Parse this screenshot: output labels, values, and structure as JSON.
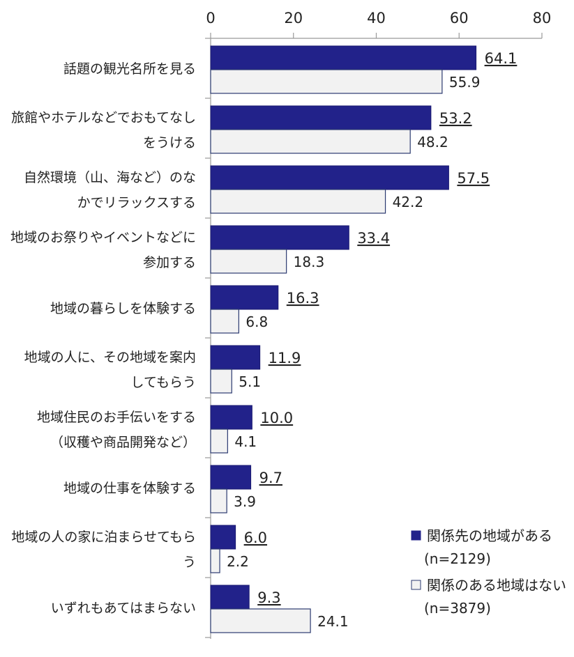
{
  "chart_data": {
    "type": "bar",
    "orientation": "horizontal",
    "x_ticks": [
      "0",
      "20",
      "40",
      "60",
      "80"
    ],
    "xlim": [
      0,
      80
    ],
    "grid": false,
    "legend_position": "bottom-right",
    "categories": [
      {
        "line1": "話題の観光名所を見る",
        "line2": ""
      },
      {
        "line1": "旅館やホテルなどでおもてなし",
        "line2": "をうける"
      },
      {
        "line1": "自然環境（山、海など）のな",
        "line2": "かでリラックスする"
      },
      {
        "line1": "地域のお祭りやイベントなどに",
        "line2": "参加する"
      },
      {
        "line1": "地域の暮らしを体験する",
        "line2": ""
      },
      {
        "line1": "地域の人に、その地域を案内",
        "line2": "してもらう"
      },
      {
        "line1": "地域住民のお手伝いをする",
        "line2": "（収穫や商品開発など）"
      },
      {
        "line1": "地域の仕事を体験する",
        "line2": ""
      },
      {
        "line1": "地域の人の家に泊まらせてもら",
        "line2": "う"
      },
      {
        "line1": "いずれもあてはまらない",
        "line2": ""
      }
    ],
    "series": [
      {
        "name": "関係先の地域がある",
        "sample": "(n=2129)",
        "color": "#22228a",
        "values": [
          64.1,
          53.2,
          57.5,
          33.4,
          16.3,
          11.9,
          10.0,
          9.7,
          6.0,
          9.3
        ],
        "labels": [
          "64.1",
          "53.2",
          "57.5",
          "33.4",
          "16.3",
          "11.9",
          "10.0",
          "9.7",
          "6.0",
          "9.3"
        ]
      },
      {
        "name": "関係のある地域はない",
        "sample": "(n=3879)",
        "color": "#f2f2f2",
        "values": [
          55.9,
          48.2,
          42.2,
          18.3,
          6.8,
          5.1,
          4.1,
          3.9,
          2.2,
          24.1
        ],
        "labels": [
          "55.9",
          "48.2",
          "42.2",
          "18.3",
          "6.8",
          "5.1",
          "4.1",
          "3.9",
          "2.2",
          "24.1"
        ]
      }
    ]
  }
}
